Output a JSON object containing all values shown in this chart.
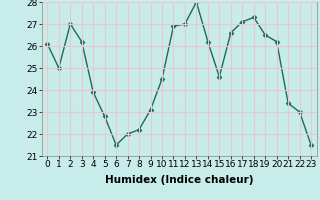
{
  "x": [
    0,
    1,
    2,
    3,
    4,
    5,
    6,
    7,
    8,
    9,
    10,
    11,
    12,
    13,
    14,
    15,
    16,
    17,
    18,
    19,
    20,
    21,
    22,
    23
  ],
  "y": [
    26.1,
    25.0,
    27.0,
    26.2,
    23.9,
    22.8,
    21.5,
    22.0,
    22.2,
    23.1,
    24.5,
    26.9,
    27.0,
    28.0,
    26.2,
    24.6,
    26.6,
    27.1,
    27.3,
    26.5,
    26.2,
    23.4,
    23.0,
    21.5
  ],
  "line_color": "#1a6b5a",
  "marker": "D",
  "marker_size": 2.5,
  "bg_color": "#c8ecea",
  "grid_color": "#e8c8c8",
  "xlabel": "Humidex (Indice chaleur)",
  "xlim": [
    -0.5,
    23.5
  ],
  "ylim": [
    21,
    28
  ],
  "yticks": [
    21,
    22,
    23,
    24,
    25,
    26,
    27,
    28
  ],
  "xticks": [
    0,
    1,
    2,
    3,
    4,
    5,
    6,
    7,
    8,
    9,
    10,
    11,
    12,
    13,
    14,
    15,
    16,
    17,
    18,
    19,
    20,
    21,
    22,
    23
  ],
  "xlabel_fontsize": 7.5,
  "tick_fontsize": 6.5,
  "line_width": 1.0
}
